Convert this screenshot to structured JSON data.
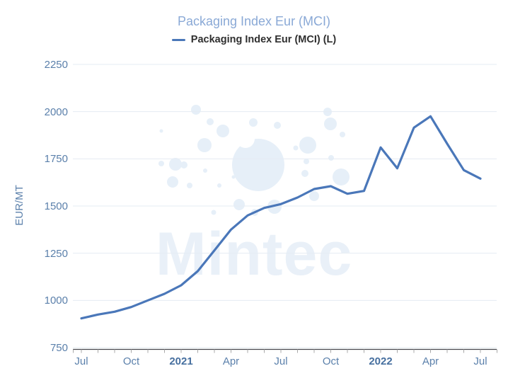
{
  "title": "Packaging Index Eur (MCI)",
  "legend": {
    "label": "Packaging Index Eur (MCI) (L)"
  },
  "watermark": "Mintec",
  "y_axis": {
    "title": "EUR/MT",
    "ticks": [
      2250,
      2000,
      1750,
      1500,
      1250,
      1000,
      750
    ]
  },
  "x_axis": {
    "labels": [
      {
        "text": "Jul",
        "month_index": 0,
        "bold": false
      },
      {
        "text": "Oct",
        "month_index": 3,
        "bold": false
      },
      {
        "text": "2021",
        "month_index": 6,
        "bold": true
      },
      {
        "text": "Apr",
        "month_index": 9,
        "bold": false
      },
      {
        "text": "Jul",
        "month_index": 12,
        "bold": false
      },
      {
        "text": "Oct",
        "month_index": 15,
        "bold": false
      },
      {
        "text": "2022",
        "month_index": 18,
        "bold": true
      },
      {
        "text": "Apr",
        "month_index": 21,
        "bold": false
      },
      {
        "text": "Jul",
        "month_index": 24,
        "bold": false
      }
    ]
  },
  "chart_data": {
    "type": "line",
    "title": "Packaging Index Eur (MCI)",
    "ylabel": "EUR/MT",
    "ylim": [
      750,
      2250
    ],
    "ytick_step": 250,
    "grid": "horizontal",
    "legend_position": "top-center",
    "x": [
      "2020-07",
      "2020-08",
      "2020-09",
      "2020-10",
      "2020-11",
      "2020-12",
      "2021-01",
      "2021-02",
      "2021-03",
      "2021-04",
      "2021-05",
      "2021-06",
      "2021-07",
      "2021-08",
      "2021-09",
      "2021-10",
      "2021-11",
      "2021-12",
      "2022-01",
      "2022-02",
      "2022-03",
      "2022-04",
      "2022-05",
      "2022-06",
      "2022-07"
    ],
    "series": [
      {
        "name": "Packaging Index Eur (MCI) (L)",
        "values": [
          905,
          925,
          940,
          965,
          1000,
          1035,
          1080,
          1155,
          1265,
          1375,
          1450,
          1490,
          1510,
          1545,
          1590,
          1605,
          1565,
          1580,
          1810,
          1700,
          1915,
          1975,
          1830,
          1690,
          1645
        ]
      }
    ]
  },
  "colors": {
    "line": "#4a77b9",
    "title": "#8aa9d6",
    "legend_text": "#2f2f2f",
    "axis_label": "#5b80ab",
    "year_label": "#466f9f",
    "grid": "#e5ecf3",
    "axis_line": "#46464c",
    "tick_mark": "#a8a8a8",
    "watermark": "#e9f0f8",
    "bubble": "#e6eff8"
  }
}
